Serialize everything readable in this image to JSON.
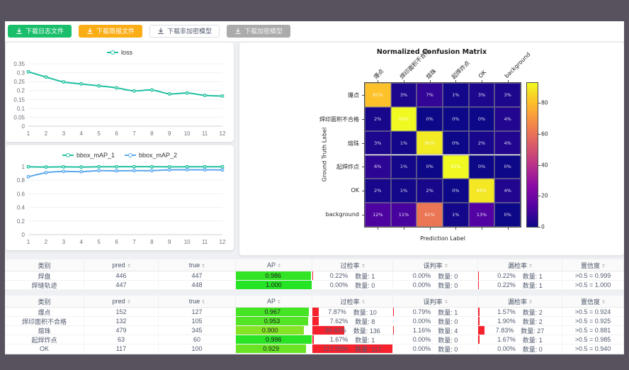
{
  "colors": {
    "frame": "#57525d",
    "page_bg": "#eef0f4",
    "accent_teal": "#20c0a0",
    "accent_blue": "#5ba8ee",
    "bar_red": "#f5222d",
    "btn_green": "#19be6b",
    "btn_orange": "#fbad15",
    "btn_gray": "#ababab"
  },
  "toolbar": {
    "buttons": [
      {
        "label": "下载日志文件",
        "variant": "green"
      },
      {
        "label": "下载简报文件",
        "variant": "orange"
      },
      {
        "label": "下载非加密模型",
        "variant": "plain"
      },
      {
        "label": "下载加密模型",
        "variant": "gray"
      }
    ]
  },
  "chart_data": [
    {
      "type": "line",
      "title": "",
      "legend_position": "top",
      "x": [
        1,
        2,
        3,
        4,
        5,
        6,
        7,
        8,
        9,
        10,
        11,
        12
      ],
      "series": [
        {
          "name": "loss",
          "color": "#20c0a0",
          "values": [
            0.305,
            0.276,
            0.248,
            0.237,
            0.226,
            0.215,
            0.198,
            0.203,
            0.181,
            0.186,
            0.173,
            0.169
          ]
        }
      ],
      "ylim": [
        0,
        0.35
      ],
      "yticks": [
        0,
        0.05,
        0.1,
        0.15,
        0.2,
        0.25,
        0.3,
        0.35
      ],
      "grid": true
    },
    {
      "type": "line",
      "title": "",
      "legend_position": "top",
      "x": [
        1,
        2,
        3,
        4,
        5,
        6,
        7,
        8,
        9,
        10,
        11,
        12
      ],
      "series": [
        {
          "name": "bbox_mAP_1",
          "color": "#20c0a0",
          "values": [
            0.997,
            0.993,
            0.996,
            0.993,
            0.997,
            0.998,
            0.998,
            0.998,
            0.996,
            0.997,
            0.997,
            0.997
          ]
        },
        {
          "name": "bbox_mAP_2",
          "color": "#5ba8ee",
          "values": [
            0.85,
            0.91,
            0.928,
            0.925,
            0.94,
            0.938,
            0.94,
            0.94,
            0.952,
            0.953,
            0.952,
            0.95
          ]
        }
      ],
      "ylim": [
        0,
        1
      ],
      "yticks": [
        0,
        0.2,
        0.4,
        0.6,
        0.8,
        1
      ],
      "grid": true
    },
    {
      "type": "heatmap",
      "title": "Normalized Confusion Matrix",
      "xlabel": "Prediction Label",
      "ylabel": "Ground Truth Label",
      "labels": [
        "爆点",
        "焊印面积不合格",
        "熔珠",
        "起焊炸点",
        "OK",
        "background"
      ],
      "values_percent": [
        [
          81,
          3,
          7,
          1,
          3,
          3
        ],
        [
          2,
          93,
          0,
          0,
          0,
          4
        ],
        [
          3,
          1,
          90,
          0,
          2,
          4
        ],
        [
          6,
          1,
          0,
          93,
          0,
          0
        ],
        [
          2,
          1,
          2,
          0,
          89,
          4
        ],
        [
          12,
          11,
          61,
          1,
          13,
          0
        ]
      ],
      "colorbar_ticks": [
        0,
        20,
        40,
        60,
        80
      ],
      "colorbar_max": 93,
      "colormap": "plasma"
    }
  ],
  "tables": [
    {
      "headers": [
        "类别",
        "pred",
        "true",
        "AP",
        "过检率",
        "误判率",
        "漏检率",
        "置信度"
      ],
      "sortable": [
        false,
        true,
        true,
        true,
        true,
        true,
        true,
        true
      ],
      "rows": [
        {
          "category": "焊盘",
          "pred": "446",
          "true": "447",
          "ap": "0.986",
          "overdetect": {
            "pct": "0.22%",
            "count": "数量: 1"
          },
          "misjudge": {
            "pct": "0.00%",
            "count": "数量: 0"
          },
          "miss": {
            "pct": "0.22%",
            "count": "数量: 1"
          },
          "confidence": ">0.5 = 0.999"
        },
        {
          "category": "焊缝轨迹",
          "pred": "447",
          "true": "448",
          "ap": "1.000",
          "overdetect": {
            "pct": "0.00%",
            "count": "数量: 0"
          },
          "misjudge": {
            "pct": "0.00%",
            "count": "数量: 0"
          },
          "miss": {
            "pct": "0.22%",
            "count": "数量: 1"
          },
          "confidence": ">0.5 = 1.000"
        }
      ]
    },
    {
      "headers": [
        "类别",
        "pred",
        "true",
        "AP",
        "过检率",
        "误判率",
        "漏检率",
        "置信度"
      ],
      "sortable": [
        false,
        true,
        true,
        true,
        true,
        true,
        true,
        true
      ],
      "rows": [
        {
          "category": "爆点",
          "pred": "152",
          "true": "127",
          "ap": "0.967",
          "overdetect": {
            "pct": "7.87%",
            "count": "数量: 10"
          },
          "misjudge": {
            "pct": "0.79%",
            "count": "数量: 1"
          },
          "miss": {
            "pct": "1.57%",
            "count": "数量: 2"
          },
          "confidence": ">0.5 = 0.924"
        },
        {
          "category": "焊印面积不合格",
          "pred": "132",
          "true": "105",
          "ap": "0.953",
          "overdetect": {
            "pct": "7.62%",
            "count": "数量: 8"
          },
          "misjudge": {
            "pct": "0.00%",
            "count": "数量: 0"
          },
          "miss": {
            "pct": "1.90%",
            "count": "数量: 2"
          },
          "confidence": ">0.5 = 0.925"
        },
        {
          "category": "熔珠",
          "pred": "479",
          "true": "345",
          "ap": "0.900",
          "overdetect": {
            "pct": "39.42%",
            "count": "数量: 136"
          },
          "misjudge": {
            "pct": "1.16%",
            "count": "数量: 4"
          },
          "miss": {
            "pct": "7.83%",
            "count": "数量: 27"
          },
          "confidence": ">0.5 = 0.881"
        },
        {
          "category": "起焊炸点",
          "pred": "63",
          "true": "60",
          "ap": "0.996",
          "overdetect": {
            "pct": "1.67%",
            "count": "数量: 1"
          },
          "misjudge": {
            "pct": "0.00%",
            "count": "数量: 0"
          },
          "miss": {
            "pct": "1.67%",
            "count": "数量: 1"
          },
          "confidence": ">0.5 = 0.985"
        },
        {
          "category": "OK",
          "pred": "117",
          "true": "100",
          "ap": "0.929",
          "overdetect": {
            "pct": "117.00%",
            "count": "数量: 117"
          },
          "misjudge": {
            "pct": "0.00%",
            "count": "数量: 0"
          },
          "miss": {
            "pct": "0.00%",
            "count": "数量: 0"
          },
          "confidence": ">0.5 = 0.940"
        }
      ]
    }
  ]
}
